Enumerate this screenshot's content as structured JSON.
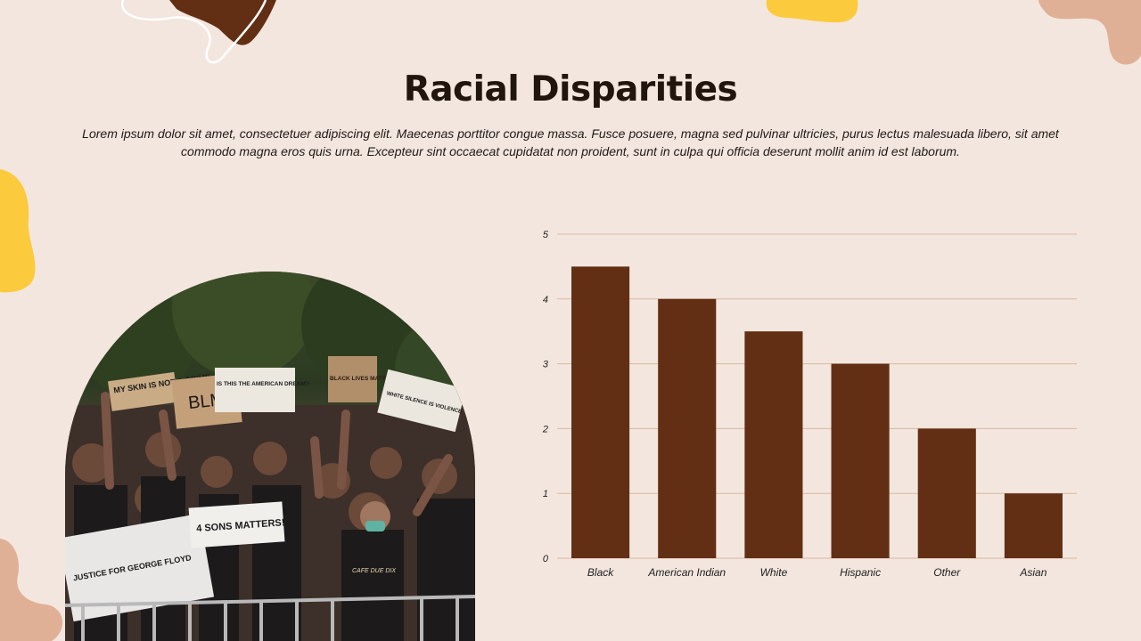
{
  "slide": {
    "title": "Racial Disparities",
    "body": "Lorem ipsum dolor sit amet, consectetuer adipiscing elit. Maecenas porttitor congue massa. Fusce posuere, magna sed pulvinar ultricies, purus lectus malesuada libero, sit amet commodo magna eros quis urna. Excepteur sint occaecat cupidatat non proident, sunt in culpa qui officia deserunt mollit anim id est laborum."
  },
  "photo": {
    "signs": [
      "MY SKIN IS NOT A CRIME",
      "BLM",
      "IS THIS THE AMERICAN DREAM?",
      "BLACK LIVES MATTER",
      "WHITE SILENCE IS VIOLENCE",
      "JUSTICE FOR GEORGE FLOYD",
      "4 SONS MATTERS!",
      "CAFE DUE DIX"
    ]
  },
  "colors": {
    "background": "#f3e6de",
    "bar": "#622f14",
    "gridline": "#d9b9a3",
    "accent_yellow": "#fcca3d",
    "accent_peach": "#e0b096",
    "accent_brown": "#622f14"
  },
  "chart_data": {
    "type": "bar",
    "categories": [
      "Black",
      "American Indian",
      "White",
      "Hispanic",
      "Other",
      "Asian"
    ],
    "values": [
      4.5,
      4,
      3.5,
      3,
      2,
      1
    ],
    "ylim": [
      0,
      5
    ],
    "yticks": [
      "0",
      "1",
      "2",
      "3",
      "4",
      "5"
    ],
    "grid": true,
    "legend": "none"
  }
}
